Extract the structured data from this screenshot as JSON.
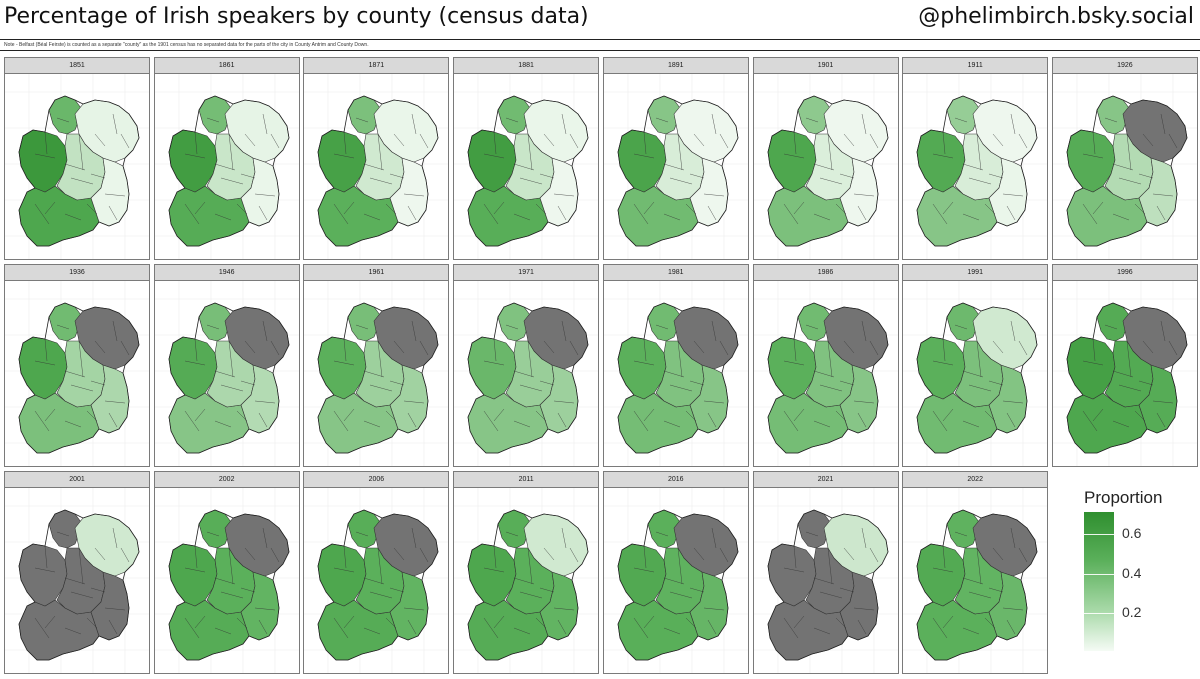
{
  "header": {
    "title": "Percentage of Irish speakers by county (census data)",
    "handle": "@phelimbirch.bsky.social",
    "note": "Note - Belfast (Béal Feirste) is counted as a separate \"county\" as the 1901 census has no separated data for the parts of the city in County Antrim and County Down."
  },
  "chart_data": {
    "type": "choropleth-small-multiples",
    "value_label": "Proportion",
    "legend": {
      "title": "Proportion",
      "ticks": [
        0.6,
        0.4,
        0.2
      ],
      "range": [
        0.0,
        0.7
      ],
      "placement": "bottom-right",
      "colors": {
        "low": "#f5fbf5",
        "mid": "#5bb05b",
        "high": "#2f8f2f",
        "missing": "#737373",
        "border": "#333333"
      }
    },
    "panels": [
      {
        "year": "1851",
        "west": 0.62,
        "northwest": 0.38,
        "south": 0.5,
        "midlands": 0.14,
        "east": 0.03,
        "north": 0.04,
        "northern_ireland_missing": false
      },
      {
        "year": "1861",
        "west": 0.58,
        "northwest": 0.35,
        "south": 0.45,
        "midlands": 0.12,
        "east": 0.03,
        "north": 0.04,
        "northern_ireland_missing": false
      },
      {
        "year": "1871",
        "west": 0.55,
        "northwest": 0.33,
        "south": 0.42,
        "midlands": 0.1,
        "east": 0.02,
        "north": 0.03,
        "northern_ireland_missing": false
      },
      {
        "year": "1881",
        "west": 0.58,
        "northwest": 0.36,
        "south": 0.44,
        "midlands": 0.12,
        "east": 0.02,
        "north": 0.03,
        "northern_ireland_missing": false
      },
      {
        "year": "1891",
        "west": 0.52,
        "northwest": 0.3,
        "south": 0.36,
        "midlands": 0.08,
        "east": 0.02,
        "north": 0.02,
        "northern_ireland_missing": false
      },
      {
        "year": "1901",
        "west": 0.5,
        "northwest": 0.28,
        "south": 0.33,
        "midlands": 0.07,
        "east": 0.02,
        "north": 0.02,
        "northern_ireland_missing": false
      },
      {
        "year": "1911",
        "west": 0.47,
        "northwest": 0.26,
        "south": 0.3,
        "midlands": 0.08,
        "east": 0.03,
        "north": 0.02,
        "northern_ireland_missing": false
      },
      {
        "year": "1926",
        "west": 0.45,
        "northwest": 0.3,
        "south": 0.33,
        "midlands": 0.18,
        "east": 0.15,
        "north": null,
        "northern_ireland_missing": true
      },
      {
        "year": "1936",
        "west": 0.5,
        "northwest": 0.36,
        "south": 0.33,
        "midlands": 0.22,
        "east": 0.2,
        "north": null,
        "northern_ireland_missing": true
      },
      {
        "year": "1946",
        "west": 0.46,
        "northwest": 0.34,
        "south": 0.3,
        "midlands": 0.2,
        "east": 0.18,
        "north": null,
        "northern_ireland_missing": true
      },
      {
        "year": "1961",
        "west": 0.42,
        "northwest": 0.34,
        "south": 0.3,
        "midlands": 0.24,
        "east": 0.23,
        "north": null,
        "northern_ireland_missing": true
      },
      {
        "year": "1971",
        "west": 0.38,
        "northwest": 0.32,
        "south": 0.3,
        "midlands": 0.25,
        "east": 0.24,
        "north": null,
        "northern_ireland_missing": true
      },
      {
        "year": "1981",
        "west": 0.42,
        "northwest": 0.36,
        "south": 0.35,
        "midlands": 0.32,
        "east": 0.3,
        "north": null,
        "northern_ireland_missing": true
      },
      {
        "year": "1986",
        "west": 0.42,
        "northwest": 0.36,
        "south": 0.35,
        "midlands": 0.32,
        "east": 0.3,
        "north": null,
        "northern_ireland_missing": true
      },
      {
        "year": "1991",
        "west": 0.42,
        "northwest": 0.37,
        "south": 0.36,
        "midlands": 0.33,
        "east": 0.31,
        "north": 0.1,
        "northern_ireland_missing": false
      },
      {
        "year": "1996",
        "west": 0.56,
        "northwest": 0.46,
        "south": 0.5,
        "midlands": 0.47,
        "east": 0.45,
        "north": null,
        "northern_ireland_missing": true
      },
      {
        "year": "2001",
        "west": null,
        "northwest": null,
        "south": null,
        "midlands": null,
        "east": null,
        "north": 0.1,
        "northern_ireland_missing": false
      },
      {
        "year": "2002",
        "west": 0.5,
        "northwest": 0.44,
        "south": 0.45,
        "midlands": 0.42,
        "east": 0.4,
        "north": null,
        "northern_ireland_missing": true
      },
      {
        "year": "2006",
        "west": 0.5,
        "northwest": 0.44,
        "south": 0.45,
        "midlands": 0.42,
        "east": 0.4,
        "north": null,
        "northern_ireland_missing": true
      },
      {
        "year": "2011",
        "west": 0.5,
        "northwest": 0.44,
        "south": 0.45,
        "midlands": 0.42,
        "east": 0.4,
        "north": 0.1,
        "northern_ireland_missing": false
      },
      {
        "year": "2016",
        "west": 0.48,
        "northwest": 0.42,
        "south": 0.43,
        "midlands": 0.41,
        "east": 0.39,
        "north": null,
        "northern_ireland_missing": true
      },
      {
        "year": "2021",
        "west": null,
        "northwest": null,
        "south": null,
        "midlands": null,
        "east": null,
        "north": 0.11,
        "northern_ireland_missing": false
      },
      {
        "year": "2022",
        "west": 0.47,
        "northwest": 0.41,
        "south": 0.42,
        "midlands": 0.4,
        "east": 0.38,
        "north": null,
        "northern_ireland_missing": true
      }
    ]
  }
}
